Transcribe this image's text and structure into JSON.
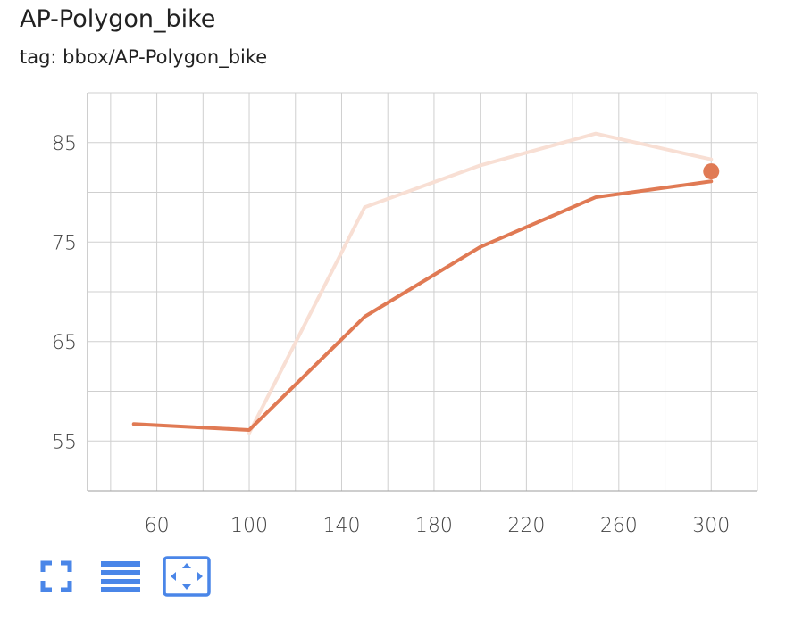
{
  "card": {
    "title": "AP-Polygon_bike",
    "subtitle": "tag: bbox/AP-Polygon_bike"
  },
  "colors": {
    "smoothed_line": "#e07a54",
    "raw_line": "#f8dfd4",
    "grid": "#cfcfcf",
    "axis": "#9e9e9e",
    "toolbar_icon": "#4a86e8"
  },
  "chart_data": {
    "type": "line",
    "title": "AP-Polygon_bike",
    "xlabel": "",
    "ylabel": "",
    "xlim": [
      30,
      320
    ],
    "ylim": [
      50,
      90
    ],
    "x_ticks": [
      60,
      100,
      140,
      180,
      220,
      260,
      300
    ],
    "y_ticks": [
      55,
      65,
      75,
      85
    ],
    "grid": true,
    "series": [
      {
        "role": "smoothed",
        "color": "#e07a54",
        "x": [
          50,
          100,
          150,
          200,
          250,
          300
        ],
        "y": [
          56.7,
          56.1,
          67.5,
          74.5,
          79.5,
          81.1
        ]
      },
      {
        "role": "raw",
        "color": "#f8dfd4",
        "x": [
          100,
          150,
          200,
          250,
          300
        ],
        "y": [
          55.8,
          78.5,
          82.7,
          85.9,
          83.3
        ]
      }
    ],
    "highlight_point": {
      "x": 300,
      "y": 82.1
    }
  },
  "toolbar": {
    "fullscreen_icon": "fullscreen-icon",
    "legend_icon": "legend-lines-icon",
    "fit_domain_icon": "fit-domain-icon"
  }
}
